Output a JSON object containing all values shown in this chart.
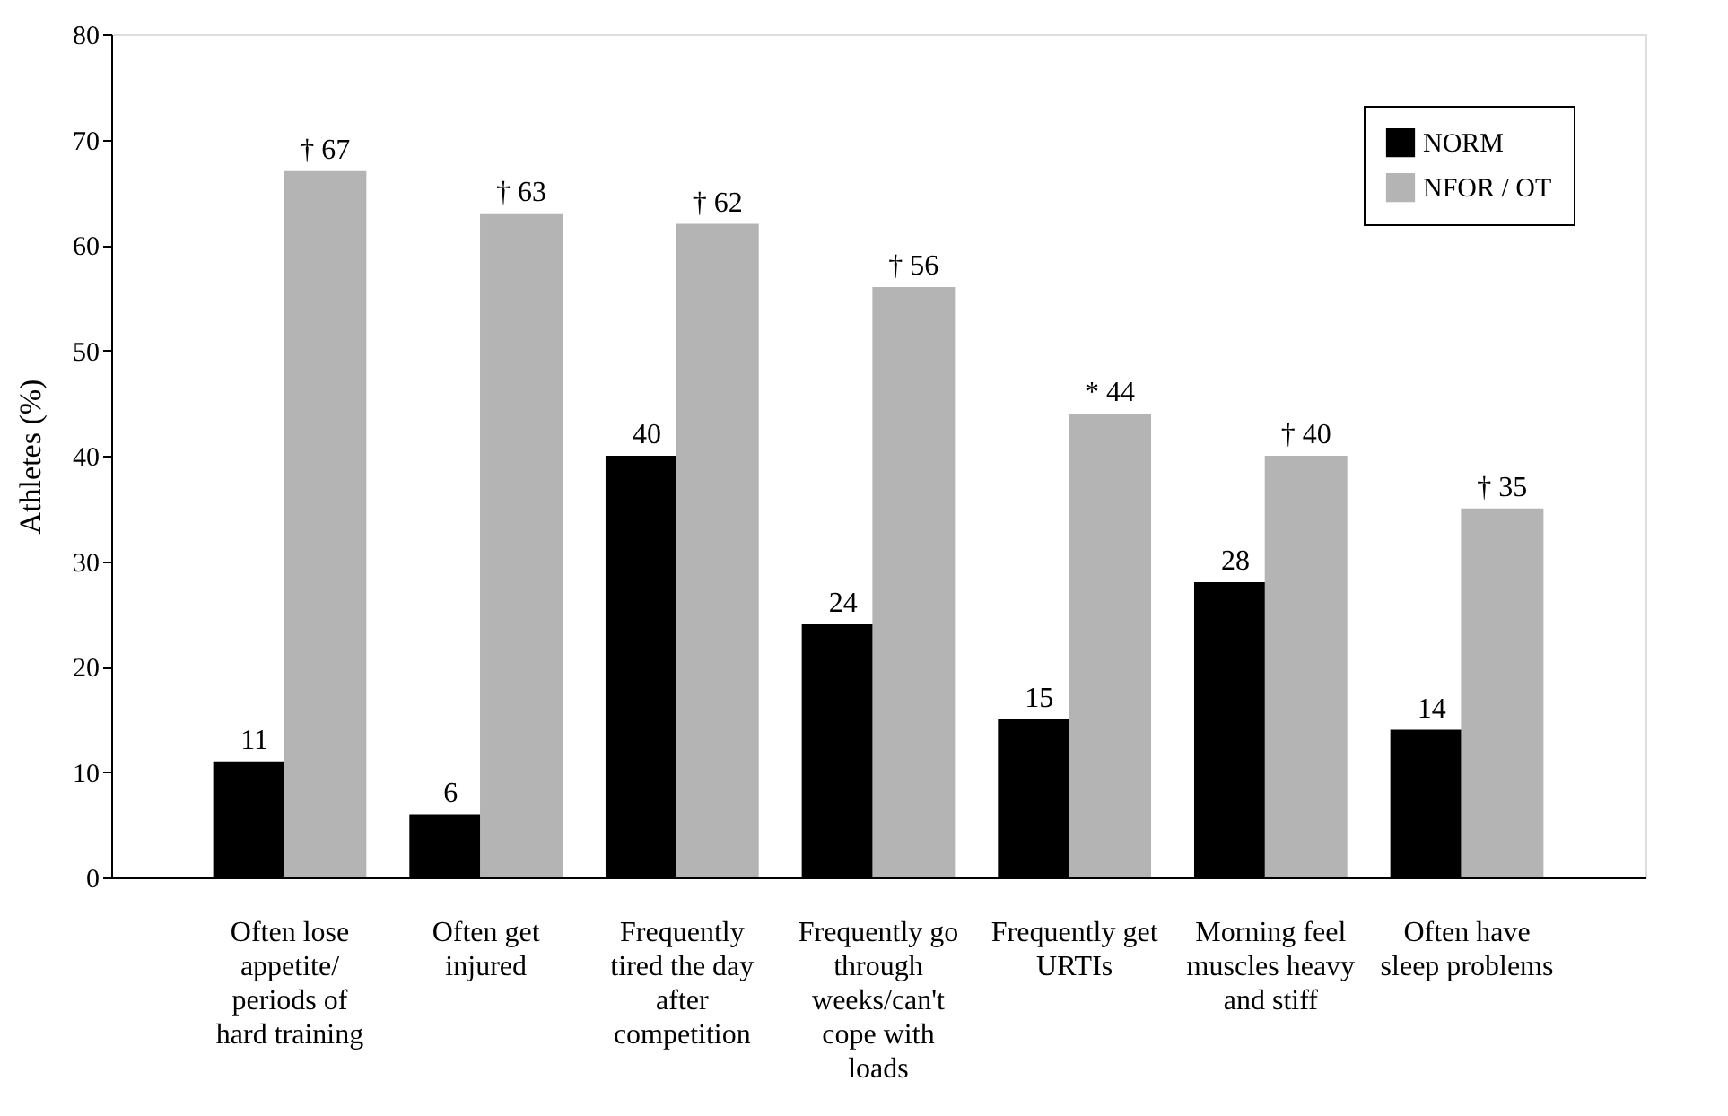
{
  "chart_data": {
    "type": "bar",
    "ylabel": "Athletes (%)",
    "categories": [
      "Often lose appetite/ periods of hard training",
      "Often get injured",
      "Frequently tired the day after competition",
      "Frequently go through weeks/can't cope with loads",
      "Frequently get URTIs",
      "Morning feel muscles heavy and stiff",
      "Often have sleep problems"
    ],
    "series": [
      {
        "name": "NORM",
        "color": "#000000",
        "values": [
          11,
          6,
          40,
          24,
          15,
          28,
          14
        ],
        "value_labels": [
          "11",
          "6",
          "40",
          "24",
          "15",
          "28",
          "14"
        ]
      },
      {
        "name": "NFOR / OT",
        "color": "#b4b4b4",
        "values": [
          67,
          63,
          62,
          56,
          44,
          40,
          35
        ],
        "value_labels": [
          "† 67",
          "† 63",
          "† 62",
          "† 56",
          "* 44",
          "† 40",
          "† 35"
        ]
      }
    ],
    "ylim": [
      0,
      80
    ],
    "yticks": [
      0,
      10,
      20,
      30,
      40,
      50,
      60,
      70,
      80
    ],
    "grid": false,
    "legend": "top right"
  }
}
